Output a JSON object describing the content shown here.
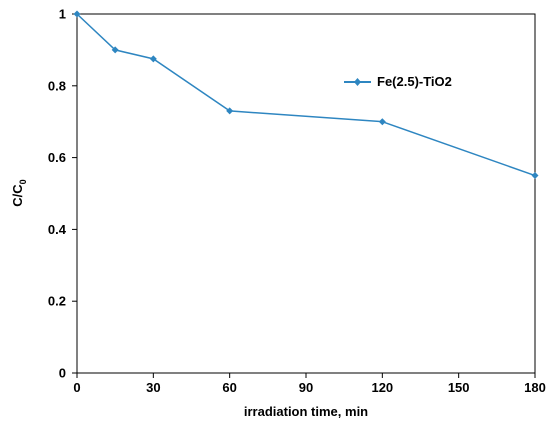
{
  "chart_data": {
    "type": "line",
    "title": "",
    "xlabel": "irradiation time, min",
    "ylabel_main": "C/C",
    "ylabel_sub": "0",
    "xlim": [
      0,
      180
    ],
    "ylim": [
      0,
      1
    ],
    "xticks": [
      0,
      30,
      60,
      90,
      120,
      150,
      180
    ],
    "yticks": [
      0,
      0.2,
      0.4,
      0.6,
      0.8,
      1
    ],
    "ytick_labels": [
      "0",
      "0.2",
      "0.4",
      "0.6",
      "0.8",
      "1"
    ],
    "grid": false,
    "legend_position": "top-right",
    "series": [
      {
        "name": "Fe(2.5)-TiO2",
        "color": "#2E86C1",
        "marker": "diamond",
        "x": [
          0,
          15,
          30,
          60,
          120,
          180
        ],
        "y": [
          1.0,
          0.9,
          0.875,
          0.73,
          0.7,
          0.55
        ]
      }
    ]
  }
}
